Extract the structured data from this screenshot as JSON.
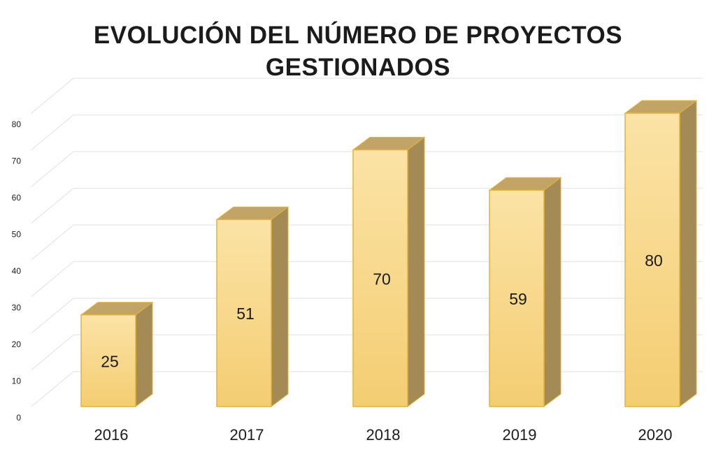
{
  "chart_data": {
    "type": "bar",
    "title_lines": [
      "EVOLUCIÓN DEL NÚMERO DE PROYECTOS",
      "GESTIONADOS"
    ],
    "categories": [
      "2016",
      "2017",
      "2018",
      "2019",
      "2020"
    ],
    "values": [
      25,
      51,
      70,
      59,
      80
    ],
    "data_labels": [
      "25",
      "51",
      "70",
      "59",
      "80"
    ],
    "y_ticks": [
      0,
      10,
      20,
      30,
      40,
      50,
      60,
      70,
      80
    ],
    "ylim": [
      0,
      80
    ],
    "grid": true,
    "style": "3d-bars",
    "colors": {
      "bar_front_top": "#fbe3a6",
      "bar_front_bottom": "#f4cd72",
      "bar_side": "#a48a55",
      "bar_top": "#c3a467",
      "bar_edge": "#e3b33a",
      "grid": "#e6e6e6",
      "text": "#1b1b1b"
    }
  }
}
